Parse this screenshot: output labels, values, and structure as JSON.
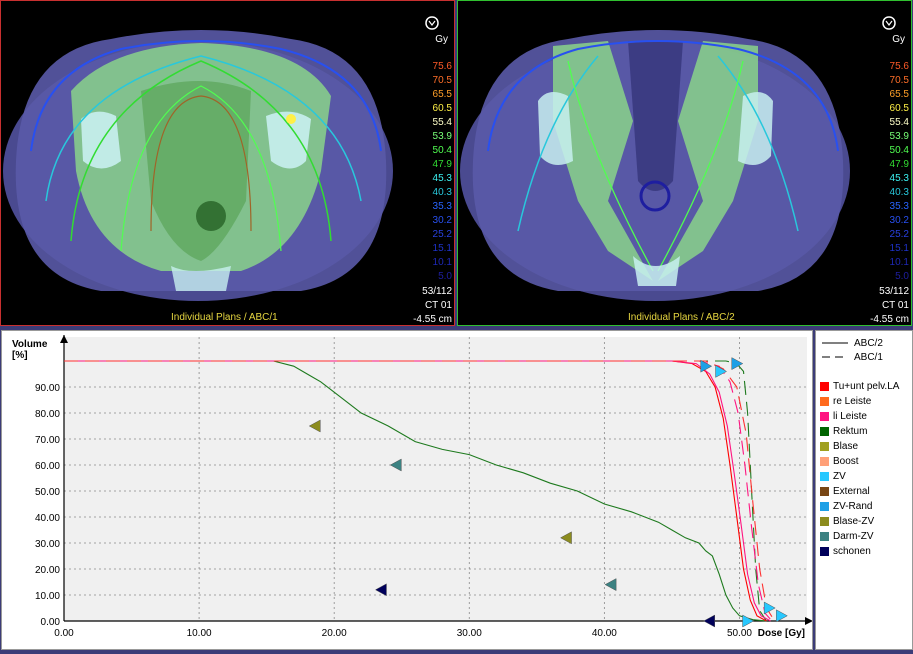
{
  "left_view": {
    "unit": "Gy",
    "plan_label": "Individual Plans / ABC/1",
    "slice": "53/112",
    "series": "CT 01",
    "position": "-4.55 cm"
  },
  "right_view": {
    "unit": "Gy",
    "plan_label": "Individual Plans / ABC/2",
    "slice": "53/112",
    "series": "CT 01",
    "position": "-4.55 cm"
  },
  "isodose_levels": [
    {
      "value": "75.6",
      "color": "#ff5a28"
    },
    {
      "value": "70.5",
      "color": "#ff6e28"
    },
    {
      "value": "65.5",
      "color": "#ffa028"
    },
    {
      "value": "60.5",
      "color": "#fff046"
    },
    {
      "value": "55.4",
      "color": "#ffffc8"
    },
    {
      "value": "53.9",
      "color": "#78ff78"
    },
    {
      "value": "50.4",
      "color": "#50ff50"
    },
    {
      "value": "47.9",
      "color": "#32dc32"
    },
    {
      "value": "45.3",
      "color": "#3cf0f0"
    },
    {
      "value": "40.3",
      "color": "#28c8dc"
    },
    {
      "value": "35.3",
      "color": "#2864ff"
    },
    {
      "value": "30.2",
      "color": "#2850f0"
    },
    {
      "value": "25.2",
      "color": "#2840dc"
    },
    {
      "value": "15.1",
      "color": "#1e32c8"
    },
    {
      "value": "10.1",
      "color": "#1e28b4"
    },
    {
      "value": "5.0",
      "color": "#1e1ea0"
    }
  ],
  "legend": {
    "plans": [
      {
        "label": "ABC/2",
        "style": "solid"
      },
      {
        "label": "ABC/1",
        "style": "dashed"
      }
    ],
    "structures": [
      {
        "label": "Tu+unt pelv.LA",
        "color": "#ff0000"
      },
      {
        "label": "re Leiste",
        "color": "#ff6a1e"
      },
      {
        "label": "li Leiste",
        "color": "#ff1480"
      },
      {
        "label": "Rektum",
        "color": "#006400"
      },
      {
        "label": "Blase",
        "color": "#a0a01e"
      },
      {
        "label": "Boost",
        "color": "#ffa078"
      },
      {
        "label": "ZV",
        "color": "#28c8ff"
      },
      {
        "label": "External",
        "color": "#784614"
      },
      {
        "label": "ZV-Rand",
        "color": "#1ea0e6"
      },
      {
        "label": "Blase-ZV",
        "color": "#8c8c1e"
      },
      {
        "label": "Darm-ZV",
        "color": "#3c8282"
      },
      {
        "label": "schonen",
        "color": "#00005a"
      }
    ]
  },
  "chart_data": {
    "type": "line",
    "xlabel": "Dose [Gy]",
    "ylabel": "Volume [%]",
    "xlim": [
      0,
      55
    ],
    "ylim": [
      0,
      100
    ],
    "xticks": [
      "0.00",
      "10.00",
      "20.00",
      "30.00",
      "40.00",
      "50.00"
    ],
    "yticks": [
      "0.00",
      "10.00",
      "20.00",
      "30.00",
      "40.00",
      "50.00",
      "60.00",
      "70.00",
      "80.00",
      "90.00"
    ],
    "grid": true,
    "series": [
      {
        "name": "Rektum",
        "plan": "ABC/2",
        "style": "solid",
        "color": "#1e7a1e",
        "x": [
          15.5,
          17,
          18,
          19,
          20,
          22,
          24,
          26,
          28,
          30,
          32,
          34,
          36,
          38,
          40,
          42,
          44,
          45,
          46,
          47,
          47.5,
          48,
          48.5,
          49,
          49.5,
          50,
          51,
          52
        ],
        "y": [
          100,
          98,
          95,
          92,
          88,
          80,
          75,
          69,
          66,
          64,
          60,
          57,
          53,
          50,
          45,
          42,
          38,
          35,
          32,
          30,
          27,
          25,
          18,
          10,
          5,
          2,
          0.5,
          0
        ]
      },
      {
        "name": "Rektum",
        "plan": "ABC/1",
        "style": "dashed",
        "color": "#1e7a1e",
        "x": [
          0,
          48,
          49,
          49.8,
          50.3,
          50.6,
          50.9,
          51.2,
          51.5,
          52
        ],
        "y": [
          100,
          100,
          100,
          99,
          96,
          80,
          50,
          20,
          4,
          0
        ]
      },
      {
        "name": "Tu+unt pelv.LA",
        "plan": "ABC/2",
        "style": "solid",
        "color": "#ff0000",
        "x": [
          0,
          45,
          46.5,
          47.5,
          48.2,
          48.8,
          49.3,
          49.8,
          50.3,
          50.8,
          51.3,
          52
        ],
        "y": [
          100,
          100,
          99,
          96,
          90,
          78,
          60,
          40,
          20,
          8,
          2,
          0
        ]
      },
      {
        "name": "li Leiste",
        "plan": "ABC/2",
        "style": "solid",
        "color": "#ff1480",
        "x": [
          0,
          45,
          46.8,
          47.8,
          48.5,
          49.1,
          49.6,
          50.1,
          50.6,
          51.1,
          51.6,
          52.3
        ],
        "y": [
          100,
          100,
          99,
          95,
          88,
          75,
          57,
          38,
          18,
          7,
          2,
          0
        ]
      },
      {
        "name": "li Leiste",
        "plan": "ABC/1",
        "style": "dashed",
        "color": "#ff1480",
        "x": [
          0,
          47,
          48.5,
          49.3,
          49.9,
          50.4,
          50.9,
          51.4,
          51.9,
          52.4
        ],
        "y": [
          100,
          100,
          98,
          92,
          80,
          60,
          36,
          14,
          3,
          0
        ]
      },
      {
        "name": "re Leiste",
        "plan": "ABC/1",
        "style": "dashed",
        "color": "#ff3030",
        "x": [
          0,
          47.5,
          48.8,
          49.8,
          50.5,
          51,
          51.5,
          52,
          52.6
        ],
        "y": [
          100,
          100,
          97,
          90,
          72,
          45,
          20,
          5,
          0
        ]
      }
    ],
    "markers": [
      {
        "x": 18.6,
        "y": 75,
        "dir": "left",
        "color": "#8c8c1e"
      },
      {
        "x": 24.6,
        "y": 60,
        "dir": "left",
        "color": "#3c8282"
      },
      {
        "x": 37.2,
        "y": 32,
        "dir": "left",
        "color": "#8c8c1e"
      },
      {
        "x": 40.5,
        "y": 14,
        "dir": "left",
        "color": "#3c8282"
      },
      {
        "x": 23.5,
        "y": 12,
        "dir": "left",
        "color": "#00005a"
      },
      {
        "x": 47.8,
        "y": 0,
        "dir": "left",
        "color": "#00005a"
      },
      {
        "x": 47.5,
        "y": 98,
        "dir": "right",
        "color": "#1ea0e6"
      },
      {
        "x": 48.6,
        "y": 96,
        "dir": "right",
        "color": "#28c8ff"
      },
      {
        "x": 49.8,
        "y": 99,
        "dir": "right",
        "color": "#1ea0e6"
      },
      {
        "x": 52.2,
        "y": 5,
        "dir": "right",
        "color": "#28c8ff"
      },
      {
        "x": 53.1,
        "y": 2,
        "dir": "right",
        "color": "#28c8ff"
      },
      {
        "x": 50.6,
        "y": 0,
        "dir": "right",
        "color": "#28c8ff"
      }
    ]
  }
}
